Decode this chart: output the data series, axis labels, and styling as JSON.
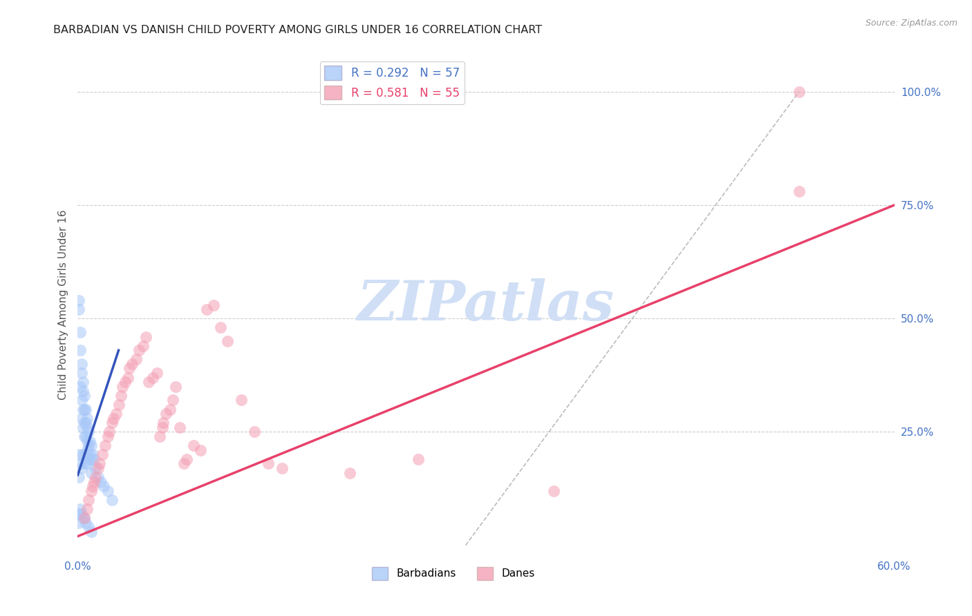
{
  "title": "BARBADIAN VS DANISH CHILD POVERTY AMONG GIRLS UNDER 16 CORRELATION CHART",
  "source": "Source: ZipAtlas.com",
  "ylabel": "Child Poverty Among Girls Under 16",
  "y_tick_labels_right": [
    "100.0%",
    "75.0%",
    "50.0%",
    "25.0%"
  ],
  "y_tick_vals_right": [
    1.0,
    0.75,
    0.5,
    0.25
  ],
  "xlim": [
    0.0,
    0.6
  ],
  "ylim": [
    -0.02,
    1.08
  ],
  "legend_labels": [
    "Barbadians",
    "Danes"
  ],
  "barbadian_color": "#a8c8f8",
  "danish_color": "#f4a0b5",
  "barbadian_trend_color": "#3355bb",
  "danish_trend_color": "#e8406a",
  "background_color": "#ffffff",
  "watermark": "ZIPatlas",
  "watermark_color": "#d0dff5",
  "title_color": "#222222",
  "axis_label_color": "#555555",
  "tick_color": "#4472c4",
  "barbadian_x": [
    0.001,
    0.001,
    0.001,
    0.001,
    0.002,
    0.002,
    0.002,
    0.002,
    0.003,
    0.003,
    0.003,
    0.003,
    0.003,
    0.004,
    0.004,
    0.004,
    0.004,
    0.004,
    0.005,
    0.005,
    0.005,
    0.005,
    0.005,
    0.006,
    0.006,
    0.006,
    0.006,
    0.007,
    0.007,
    0.007,
    0.007,
    0.007,
    0.008,
    0.008,
    0.008,
    0.009,
    0.009,
    0.01,
    0.01,
    0.01,
    0.011,
    0.012,
    0.013,
    0.015,
    0.017,
    0.019,
    0.022,
    0.025,
    0.001,
    0.001,
    0.002,
    0.003,
    0.004,
    0.005,
    0.006,
    0.008,
    0.01
  ],
  "barbadian_y": [
    0.54,
    0.52,
    0.2,
    0.15,
    0.47,
    0.43,
    0.35,
    0.18,
    0.4,
    0.38,
    0.32,
    0.28,
    0.17,
    0.36,
    0.34,
    0.3,
    0.26,
    0.2,
    0.33,
    0.3,
    0.27,
    0.24,
    0.18,
    0.3,
    0.27,
    0.24,
    0.2,
    0.28,
    0.26,
    0.23,
    0.21,
    0.18,
    0.25,
    0.22,
    0.19,
    0.23,
    0.2,
    0.22,
    0.19,
    0.16,
    0.2,
    0.19,
    0.17,
    0.15,
    0.14,
    0.13,
    0.12,
    0.1,
    0.07,
    0.05,
    0.08,
    0.07,
    0.06,
    0.06,
    0.05,
    0.04,
    0.03
  ],
  "danish_x": [
    0.005,
    0.007,
    0.008,
    0.01,
    0.011,
    0.012,
    0.013,
    0.015,
    0.016,
    0.018,
    0.02,
    0.022,
    0.023,
    0.025,
    0.026,
    0.028,
    0.03,
    0.032,
    0.033,
    0.035,
    0.037,
    0.038,
    0.04,
    0.043,
    0.045,
    0.048,
    0.05,
    0.052,
    0.055,
    0.058,
    0.06,
    0.062,
    0.063,
    0.065,
    0.068,
    0.07,
    0.072,
    0.075,
    0.078,
    0.08,
    0.085,
    0.09,
    0.095,
    0.1,
    0.105,
    0.11,
    0.12,
    0.13,
    0.14,
    0.15,
    0.2,
    0.25,
    0.35,
    0.53,
    0.53
  ],
  "danish_y": [
    0.06,
    0.08,
    0.1,
    0.12,
    0.13,
    0.14,
    0.15,
    0.17,
    0.18,
    0.2,
    0.22,
    0.24,
    0.25,
    0.27,
    0.28,
    0.29,
    0.31,
    0.33,
    0.35,
    0.36,
    0.37,
    0.39,
    0.4,
    0.41,
    0.43,
    0.44,
    0.46,
    0.36,
    0.37,
    0.38,
    0.24,
    0.26,
    0.27,
    0.29,
    0.3,
    0.32,
    0.35,
    0.26,
    0.18,
    0.19,
    0.22,
    0.21,
    0.52,
    0.53,
    0.48,
    0.45,
    0.32,
    0.25,
    0.18,
    0.17,
    0.16,
    0.19,
    0.12,
    0.78,
    1.0
  ],
  "barb_trend_x": [
    0.0,
    0.03
  ],
  "barb_trend_y": [
    0.155,
    0.43
  ],
  "dane_trend_x": [
    0.0,
    0.6
  ],
  "dane_trend_y": [
    0.02,
    0.75
  ],
  "ref_line_x": [
    0.285,
    0.53
  ],
  "ref_line_y": [
    0.0,
    1.0
  ]
}
